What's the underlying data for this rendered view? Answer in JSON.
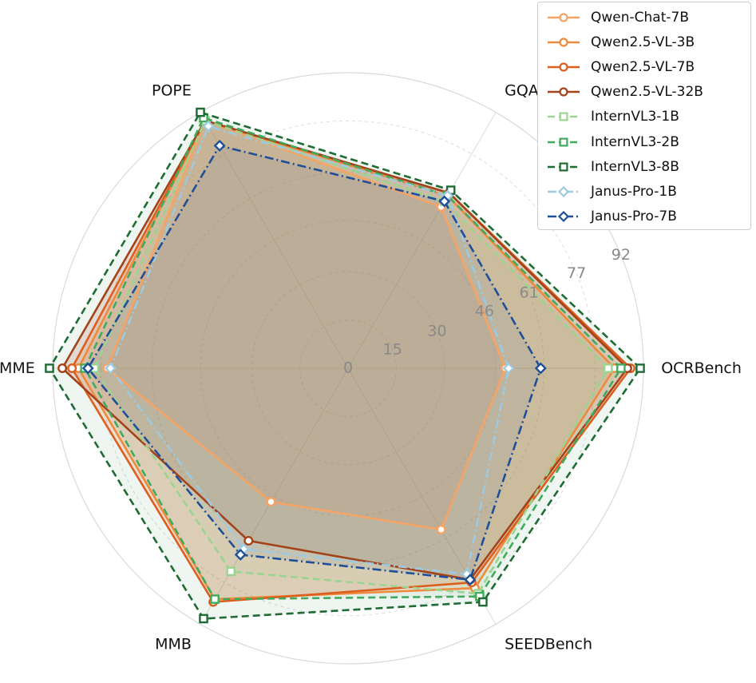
{
  "chart_data": {
    "type": "radar",
    "axes": [
      "OCRBench",
      "GQA",
      "POPE",
      "MME",
      "MMB",
      "SEEDBench"
    ],
    "rlim": [
      0,
      92
    ],
    "radial_ticks": [
      0,
      15,
      30,
      46,
      61,
      77,
      92
    ],
    "grid": true,
    "legend_position": "top-right",
    "series": [
      {
        "name": "Qwen-Chat-7B",
        "color": "#f5a466",
        "linestyle": "solid",
        "marker": "circle",
        "values": [
          49,
          58,
          89,
          75,
          48,
          58
        ]
      },
      {
        "name": "Qwen2.5-VL-3B",
        "color": "#ee8a3c",
        "linestyle": "solid",
        "marker": "circle",
        "values": [
          83,
          62,
          89,
          84,
          83,
          79
        ]
      },
      {
        "name": "Qwen2.5-VL-7B",
        "color": "#dc5f1f",
        "linestyle": "solid",
        "marker": "circle",
        "values": [
          88,
          63,
          89,
          86,
          84,
          77
        ]
      },
      {
        "name": "Qwen2.5-VL-32B",
        "color": "#a3431b",
        "linestyle": "solid",
        "marker": "circle",
        "values": [
          87,
          63,
          89,
          89,
          62,
          76
        ]
      },
      {
        "name": "InternVL3-1B",
        "color": "#9bd490",
        "linestyle": "dashed",
        "marker": "square",
        "values": [
          81,
          60,
          89,
          79,
          73,
          81
        ]
      },
      {
        "name": "InternVL3-2B",
        "color": "#41ab5d",
        "linestyle": "dashed",
        "marker": "square",
        "values": [
          85,
          62,
          90,
          82,
          83,
          82
        ]
      },
      {
        "name": "InternVL3-8B",
        "color": "#1e6b34",
        "linestyle": "dashed",
        "marker": "square",
        "values": [
          91,
          64,
          92,
          93,
          90,
          84
        ]
      },
      {
        "name": "Janus-Pro-1B",
        "color": "#9ecae1",
        "linestyle": "dashdot",
        "marker": "diamond",
        "values": [
          50,
          62,
          87,
          74,
          65,
          74
        ]
      },
      {
        "name": "Janus-Pro-7B",
        "color": "#1f4f99",
        "linestyle": "dashdot",
        "marker": "diamond",
        "values": [
          60,
          60,
          80,
          81,
          67,
          76
        ]
      }
    ]
  }
}
